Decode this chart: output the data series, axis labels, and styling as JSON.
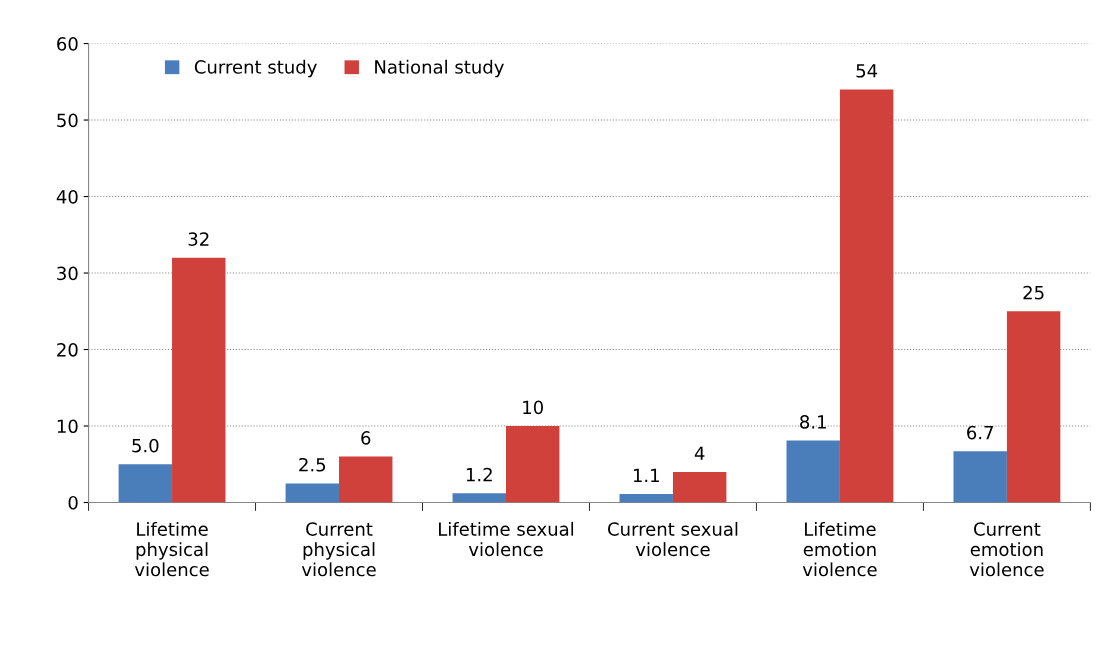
{
  "chart_data": {
    "type": "bar",
    "categories": [
      "Lifetime\nphysical\nviolence",
      "Current\nphysical\nviolence",
      "Lifetime sexual\nviolence",
      "Current sexual\nviolence",
      "Lifetime\nemotion\nviolence",
      "Current\nemotion\nviolence"
    ],
    "series": [
      {
        "name": "Current study",
        "color": "#4a7ebb",
        "values": [
          5.0,
          2.5,
          1.2,
          1.1,
          8.1,
          6.7
        ],
        "value_labels": [
          "5.0",
          "2.5",
          "1.2",
          "1.1",
          "8.1",
          "6.7"
        ]
      },
      {
        "name": "National study",
        "color": "#d0413c",
        "values": [
          32,
          6,
          10,
          4,
          54,
          25
        ],
        "value_labels": [
          "32",
          "6",
          "10",
          "4",
          "54",
          "25"
        ]
      }
    ],
    "ylim": [
      0,
      60
    ],
    "yticks": [
      0,
      10,
      20,
      30,
      40,
      50,
      60
    ],
    "grid": "y",
    "legend": "top left"
  }
}
